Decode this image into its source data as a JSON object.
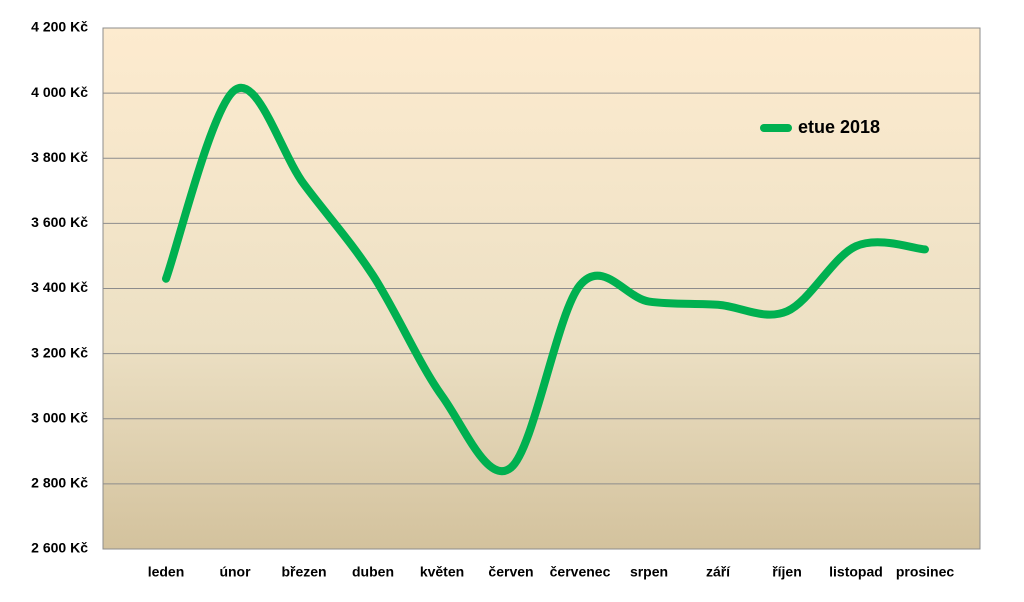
{
  "chart_data": {
    "type": "line",
    "categories": [
      "leden",
      "únor",
      "březen",
      "duben",
      "květen",
      "červen",
      "červenec",
      "srpen",
      "září",
      "říjen",
      "listopad",
      "prosinec"
    ],
    "series": [
      {
        "name": "etue 2018",
        "color": "#00b050",
        "values": [
          3430,
          4010,
          3720,
          3440,
          3070,
          2850,
          3410,
          3360,
          3350,
          3330,
          3530,
          3520
        ]
      }
    ],
    "ylim": [
      2600,
      4200
    ],
    "yticks": [
      {
        "value": 2600,
        "label": "2 600 Kč"
      },
      {
        "value": 2800,
        "label": "2 800 Kč"
      },
      {
        "value": 3000,
        "label": "3 000 Kč"
      },
      {
        "value": 3200,
        "label": "3 200 Kč"
      },
      {
        "value": 3400,
        "label": "3 400 Kč"
      },
      {
        "value": 3600,
        "label": "3 600 Kč"
      },
      {
        "value": 3800,
        "label": "3 800 Kč"
      },
      {
        "value": 4000,
        "label": "4 000 Kč"
      },
      {
        "value": 4200,
        "label": "4 200 Kč"
      }
    ],
    "grid": true,
    "smooth": true,
    "legend": "upper right"
  }
}
